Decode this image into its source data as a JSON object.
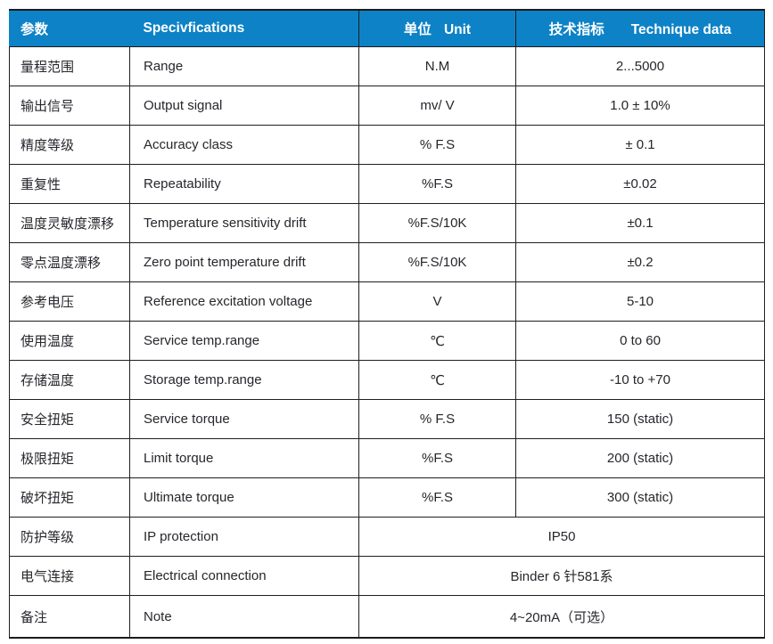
{
  "table": {
    "title_semantic": "torque-sensor-specifications",
    "colors": {
      "header_bg": "#0d82c6",
      "header_text": "#ffffff",
      "border": "#1f1f1f",
      "body_text": "#26262c"
    },
    "header": {
      "param_cn": "参数",
      "spec_en": "Specivfications",
      "unit_cn": "单位",
      "unit_en": "Unit",
      "tech_cn": "技术指标",
      "tech_en": "Technique data"
    },
    "rows": [
      {
        "cn": "量程范围",
        "en": "Range",
        "unit": "N.M",
        "value": "2...5000"
      },
      {
        "cn": "输出信号",
        "en": "Output signal",
        "unit": "mv/ V",
        "value": "1.0 ± 10%"
      },
      {
        "cn": "精度等级",
        "en": "Accuracy class",
        "unit": "% F.S",
        "value": "± 0.1"
      },
      {
        "cn": "重复性",
        "en": "Repeatability",
        "unit": "%F.S",
        "value": "±0.02"
      },
      {
        "cn": "温度灵敏度漂移",
        "en": "Temperature sensitivity drift",
        "unit": "%F.S/10K",
        "value": "±0.1"
      },
      {
        "cn": "零点温度漂移",
        "en": "Zero point temperature drift",
        "unit": "%F.S/10K",
        "value": "±0.2"
      },
      {
        "cn": "参考电压",
        "en": "Reference excitation voltage",
        "unit": "V",
        "value": "5-10"
      },
      {
        "cn": "使用温度",
        "en": "Service temp.range",
        "unit": "℃",
        "value": "0 to 60"
      },
      {
        "cn": "存储温度",
        "en": "Storage temp.range",
        "unit": "℃",
        "value": "-10 to +70"
      },
      {
        "cn": "安全扭矩",
        "en": "Service torque",
        "unit": "% F.S",
        "value": "150 (static)"
      },
      {
        "cn": "极限扭矩",
        "en": "Limit torque",
        "unit": "%F.S",
        "value": "200 (static)"
      },
      {
        "cn": "破坏扭矩",
        "en": "Ultimate torque",
        "unit": "%F.S",
        "value": "300 (static)"
      },
      {
        "cn": "防护等级",
        "en": "IP protection",
        "merged": "IP50"
      },
      {
        "cn": "电气连接",
        "en": "Electrical connection",
        "merged": "Binder 6 针581系"
      },
      {
        "cn": "备注",
        "en": "Note",
        "merged": "4~20mA（可选）"
      }
    ]
  }
}
